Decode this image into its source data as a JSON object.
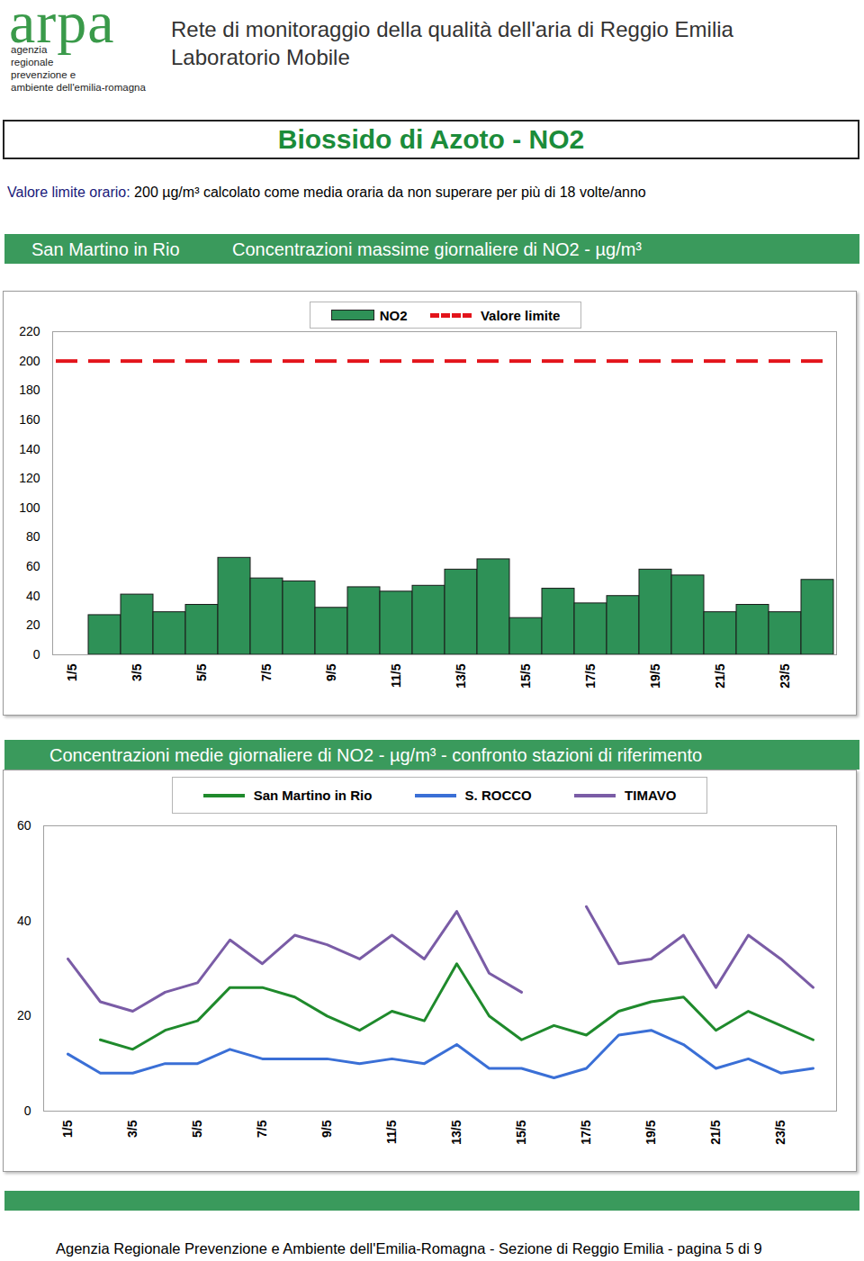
{
  "header": {
    "logo": "arpa",
    "logo_subtitle": [
      "agenzia",
      "regionale",
      "prevenzione e",
      "ambiente dell'emilia-romagna"
    ],
    "title": "Rete di monitoraggio della qualità dell'aria di Reggio Emilia",
    "subtitle": "Laboratorio Mobile"
  },
  "page_title": "Biossido di Azoto - NO2",
  "note": {
    "label": "Valore limite orario:",
    "text": "200 µg/m³ calcolato come media oraria da non superare per più di 18 volte/anno"
  },
  "chart_data": [
    {
      "type": "bar",
      "subtitle": "San Martino in Rio",
      "title": "Concentrazioni massime giornaliere di NO2 - µg/m³",
      "categories": [
        "1/5",
        null,
        "3/5",
        null,
        "5/5",
        null,
        "7/5",
        null,
        "9/5",
        null,
        "11/5",
        null,
        "13/5",
        null,
        "15/5",
        null,
        "17/5",
        null,
        "19/5",
        null,
        "21/5",
        null,
        "23/5",
        null
      ],
      "series": [
        {
          "name": "NO2",
          "type": "bar",
          "color": "#2e9157",
          "values": [
            null,
            27,
            41,
            29,
            34,
            66,
            52,
            50,
            32,
            46,
            43,
            47,
            58,
            65,
            25,
            45,
            35,
            40,
            58,
            54,
            29,
            34,
            29,
            51
          ]
        },
        {
          "name": "Valore limite",
          "type": "line",
          "color": "#e3141b",
          "line_style": "dashed",
          "values": [
            200,
            200,
            200,
            200,
            200,
            200,
            200,
            200,
            200,
            200,
            200,
            200,
            200,
            200,
            200,
            200,
            200,
            200,
            200,
            200,
            200,
            200,
            200,
            200
          ]
        }
      ],
      "ylim": [
        0,
        220
      ],
      "yticks": [
        0,
        20,
        40,
        60,
        80,
        100,
        120,
        140,
        160,
        180,
        200,
        220
      ],
      "grid": false,
      "legend": "top"
    },
    {
      "type": "line",
      "title": "Concentrazioni medie giornaliere di NO2 - µg/m³ - confronto stazioni di riferimento",
      "categories": [
        "1/5",
        null,
        "3/5",
        null,
        "5/5",
        null,
        "7/5",
        null,
        "9/5",
        null,
        "11/5",
        null,
        "13/5",
        null,
        "15/5",
        null,
        "17/5",
        null,
        "19/5",
        null,
        "21/5",
        null,
        "23/5",
        null
      ],
      "series": [
        {
          "name": "San Martino in Rio",
          "color": "#1f8a2c",
          "values": [
            null,
            15,
            13,
            17,
            19,
            26,
            26,
            24,
            20,
            17,
            21,
            19,
            31,
            20,
            15,
            18,
            16,
            21,
            23,
            24,
            17,
            21,
            18,
            15
          ]
        },
        {
          "name": "S. ROCCO",
          "color": "#3a6fd6",
          "values": [
            12,
            8,
            8,
            10,
            10,
            13,
            11,
            11,
            11,
            10,
            11,
            10,
            14,
            9,
            9,
            7,
            9,
            16,
            17,
            14,
            9,
            11,
            8,
            9
          ]
        },
        {
          "name": "TIMAVO",
          "color": "#7a5ca6",
          "values": [
            32,
            23,
            21,
            25,
            27,
            36,
            31,
            37,
            35,
            32,
            37,
            32,
            42,
            29,
            25,
            null,
            43,
            31,
            32,
            37,
            26,
            37,
            32,
            26
          ]
        }
      ],
      "ylim": [
        0,
        60
      ],
      "yticks": [
        0,
        20,
        40,
        60
      ],
      "grid": false,
      "legend": "top"
    }
  ],
  "footer": "Agenzia Regionale Prevenzione e Ambiente dell'Emilia-Romagna - Sezione di Reggio Emilia - pagina 5 di 9"
}
